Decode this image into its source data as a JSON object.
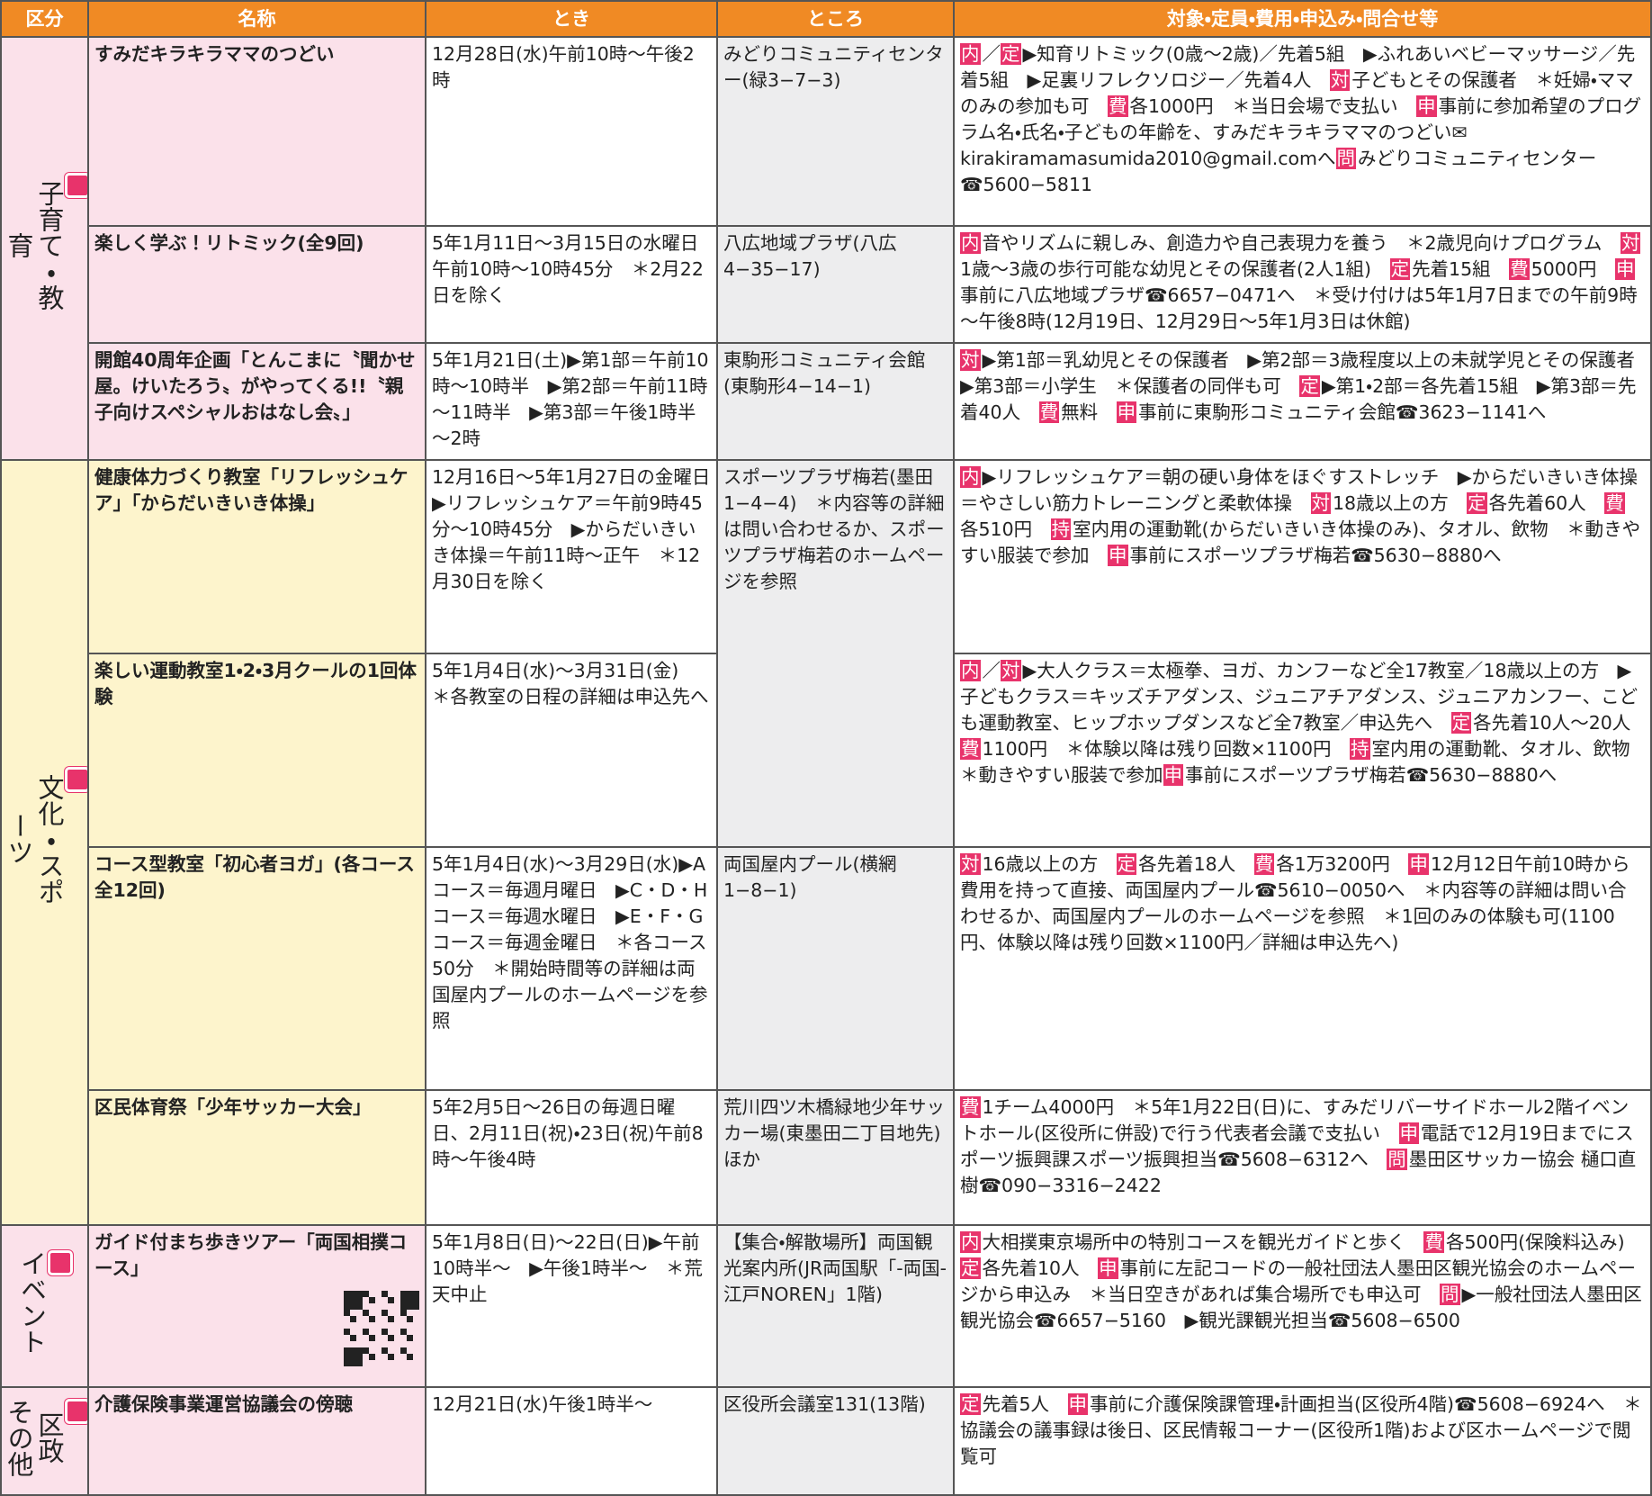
{
  "header": [
    "区分",
    "名称",
    "とき",
    "ところ",
    "対象・定員・費用・申込み・問合せ等"
  ],
  "sections": [
    {
      "category": [
        "子育て・教育"
      ],
      "rows": [
        {
          "name": "すみだキラキラママのつどい",
          "when": "12月28日(水)午前10時～午後2時",
          "where": "みどりコミュニティセンター(緑3−7−3)",
          "details": [
            {
              "tag": "内"
            },
            "／",
            {
              "tag": "定"
            },
            "▶知育リトミック(0歳～2歳)／先着5組　▶ふれあいベビーマッサージ／先着5組　▶足裏リフレクソロジー／先着4人　",
            {
              "tag": "対"
            },
            "子どもとその保護者　＊妊婦・ママのみの参加も可　",
            {
              "tag": "費"
            },
            "各1000円　＊当日会場で支払い　",
            {
              "tag": "申"
            },
            "事前に参加希望のプログラム名・氏名・子どもの年齢を、すみだキラキラママのつどい✉kirakiramamasumida2010@gmail.comへ",
            {
              "tag": "問"
            },
            "みどりコミュニティセンター☎5600−5811"
          ]
        },
        {
          "name": "楽しく学ぶ！リトミック(全9回)",
          "when": "5年1月11日～3月15日の水曜日午前10時～10時45分　＊2月22日を除く",
          "where": "八広地域プラザ(八広4−35−17)",
          "details": [
            {
              "tag": "内"
            },
            "音やリズムに親しみ、創造力や自己表現力を養う　＊2歳児向けプログラム　",
            {
              "tag": "対"
            },
            "1歳～3歳の歩行可能な幼児とその保護者(2人1組)　",
            {
              "tag": "定"
            },
            "先着15組　",
            {
              "tag": "費"
            },
            "5000円　",
            {
              "tag": "申"
            },
            "事前に八広地域プラザ☎6657−0471へ　＊受け付けは5年1月7日までの午前9時～午後8時(12月19日、12月29日～5年1月3日は休館)"
          ]
        },
        {
          "name": "開館40周年企画「とんこまに〝聞かせ屋。けいたろう〟がやってくる!!〝親子向けスペシャルおはなし会〟」",
          "when": "5年1月21日(土)▶第1部＝午前10時～10時半　▶第2部＝午前11時～11時半　▶第3部＝午後1時半～2時",
          "where": "東駒形コミュニティ会館(東駒形4−14−1)",
          "details": [
            {
              "tag": "対"
            },
            "▶第1部＝乳幼児とその保護者　▶第2部＝3歳程度以上の未就学児とその保護者　▶第3部＝小学生　＊保護者の同伴も可　",
            {
              "tag": "定"
            },
            "▶第1・2部＝各先着15組　▶第3部＝先着40人　",
            {
              "tag": "費"
            },
            "無料　",
            {
              "tag": "申"
            },
            "事前に東駒形コミュニティ会館☎3623−1141へ"
          ]
        }
      ]
    },
    {
      "category": [
        "文化・スポーツ"
      ],
      "rows": [
        {
          "name": "健康体力づくり教室「リフレッシュケア」「からだいきいき体操」",
          "when": "12月16日～5年1月27日の金曜日▶リフレッシュケア＝午前9時45分～10時45分　▶からだいきいき体操＝午前11時～正午　＊12月30日を除く",
          "where": "スポーツプラザ梅若(墨田1−4−4)　＊内容等の詳細は問い合わせるか、スポーツプラザ梅若のホームページを参照",
          "details": [
            {
              "tag": "内"
            },
            "▶リフレッシュケア＝朝の硬い身体をほぐすストレッチ　▶からだいきいき体操＝やさしい筋力トレーニングと柔軟体操　",
            {
              "tag": "対"
            },
            "18歳以上の方　",
            {
              "tag": "定"
            },
            "各先着60人　",
            {
              "tag": "費"
            },
            "各510円　",
            {
              "tag": "持"
            },
            "室内用の運動靴(からだいきいき体操のみ)、タオル、飲物　＊動きやすい服装で参加　",
            {
              "tag": "申"
            },
            "事前にスポーツプラザ梅若☎5630−8880へ"
          ]
        },
        {
          "name": "楽しい運動教室1・2・3月クールの1回体験",
          "when": "5年1月4日(水)～3月31日(金)　＊各教室の日程の詳細は申込先へ",
          "details": [
            {
              "tag": "内"
            },
            "／",
            {
              "tag": "対"
            },
            "▶大人クラス＝太極拳、ヨガ、カンフーなど全17教室／18歳以上の方　▶子どもクラス＝キッズチアダンス、ジュニアチアダンス、ジュニアカンフー、こども運動教室、ヒップホップダンスなど全7教室／申込先へ　",
            {
              "tag": "定"
            },
            "各先着10人～20人　",
            {
              "tag": "費"
            },
            "1100円　＊体験以降は残り回数×1100円　",
            {
              "tag": "持"
            },
            "室内用の運動靴、タオル、飲物　＊動きやすい服装で参加",
            {
              "tag": "申"
            },
            "事前にスポーツプラザ梅若☎5630−8880へ"
          ]
        },
        {
          "name": "コース型教室「初心者ヨガ」(各コース全12回)",
          "when": "5年1月4日(水)～3月29日(水)▶Aコース＝毎週月曜日　▶C・D・Hコース＝毎週水曜日　▶E・F・Gコース＝毎週金曜日　＊各コース50分　＊開始時間等の詳細は両国屋内プールのホームページを参照",
          "where": "両国屋内プール(横網1−8−1)",
          "details": [
            {
              "tag": "対"
            },
            "16歳以上の方　",
            {
              "tag": "定"
            },
            "各先着18人　",
            {
              "tag": "費"
            },
            "各1万3200円　",
            {
              "tag": "申"
            },
            "12月12日午前10時から費用を持って直接、両国屋内プール☎5610−0050へ　＊内容等の詳細は問い合わせるか、両国屋内プールのホームページを参照　＊1回のみの体験も可(1100円、体験以降は残り回数×1100円／詳細は申込先へ)"
          ]
        },
        {
          "name": "区民体育祭「少年サッカー大会」",
          "when": "5年2月5日～26日の毎週日曜日、2月11日(祝)・23日(祝)午前8時～午後4時",
          "where": "荒川四ツ木橋緑地少年サッカー場(東墨田二丁目地先)ほか",
          "details": [
            {
              "tag": "費"
            },
            "1チーム4000円　＊5年1月22日(日)に、すみだリバーサイドホール2階イベントホール(区役所に併設)で行う代表者会議で支払い　",
            {
              "tag": "申"
            },
            "電話で12月19日までにスポーツ振興課スポーツ振興担当☎5608−6312へ　",
            {
              "tag": "問"
            },
            "墨田区サッカー協会 樋口直樹☎090−3316−2422"
          ]
        }
      ]
    },
    {
      "category": [
        "イベント"
      ],
      "rows": [
        {
          "name": "ガイド付まち歩きツアー「両国相撲コース」",
          "when": "5年1月8日(日)～22日(日)▶午前10時半～　▶午後1時半～　＊荒天中止",
          "where": "【集合・解散場所】両国観光案内所(JR両国駅「-両国-江戸NOREN」1階)",
          "details": [
            {
              "tag": "内"
            },
            "大相撲東京場所中の特別コースを観光ガイドと歩く　",
            {
              "tag": "費"
            },
            "各500円(保険料込み)　",
            {
              "tag": "定"
            },
            "各先着10人　",
            {
              "tag": "申"
            },
            "事前に左記コードの一般社団法人墨田区観光協会のホームページから申込み　＊当日空きがあれば集合場所でも申込可　",
            {
              "tag": "問"
            },
            "▶一般社団法人墨田区観光協会☎6657−5160　▶観光課観光担当☎5608−6500"
          ]
        }
      ]
    },
    {
      "category": [
        "区政",
        "その他"
      ],
      "rows": [
        {
          "name": "介護保険事業運営協議会の傍聴",
          "when": "12月21日(水)午後1時半～",
          "where": "区役所会議室131(13階)",
          "details": [
            {
              "tag": "定"
            },
            "先着5人　",
            {
              "tag": "申"
            },
            "事前に介護保険課管理・計画担当(区役所4階)☎5608−6924へ　＊協議会の議事録は後日、区民情報コーナー(区役所1階)および区ホームページで閲覧可"
          ]
        }
      ]
    }
  ]
}
